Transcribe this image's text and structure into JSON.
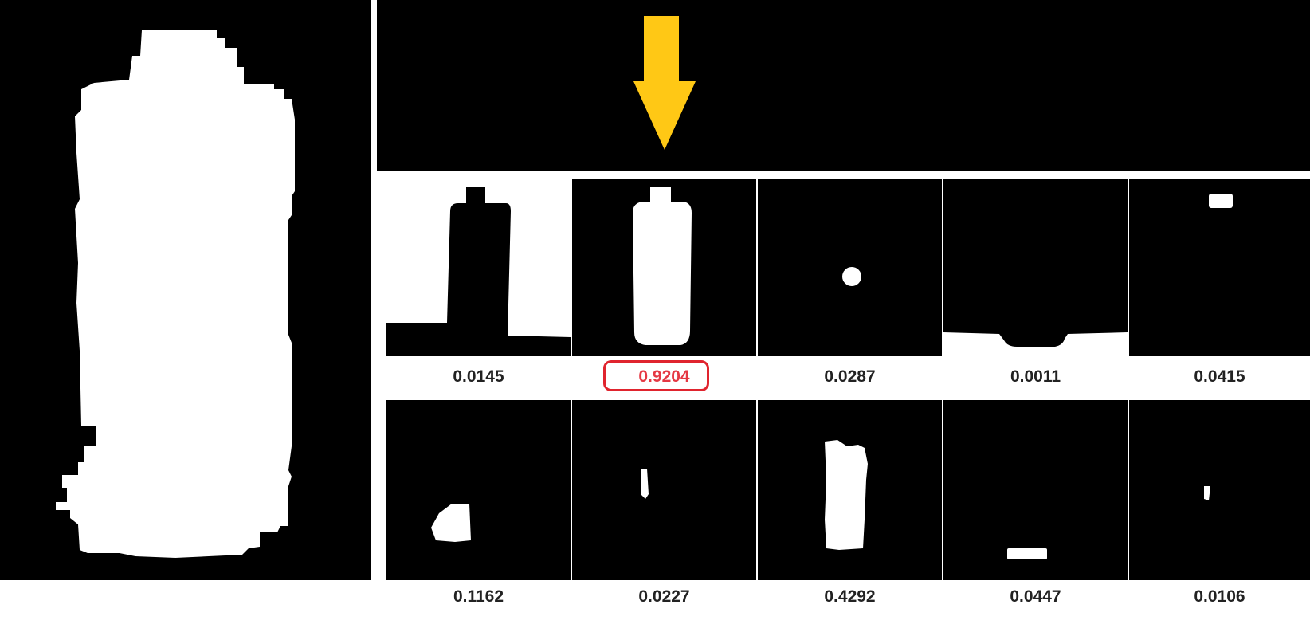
{
  "figure": {
    "highlight_color": "#e53843",
    "arrow_color": "#ffc815",
    "highlight_index": 1,
    "row1_scores": [
      "0.0145",
      "0.9204",
      "0.0287",
      "0.0011",
      "0.0415"
    ],
    "row2_scores": [
      "0.1162",
      "0.0227",
      "0.4292",
      "0.0447",
      "0.0106"
    ]
  }
}
